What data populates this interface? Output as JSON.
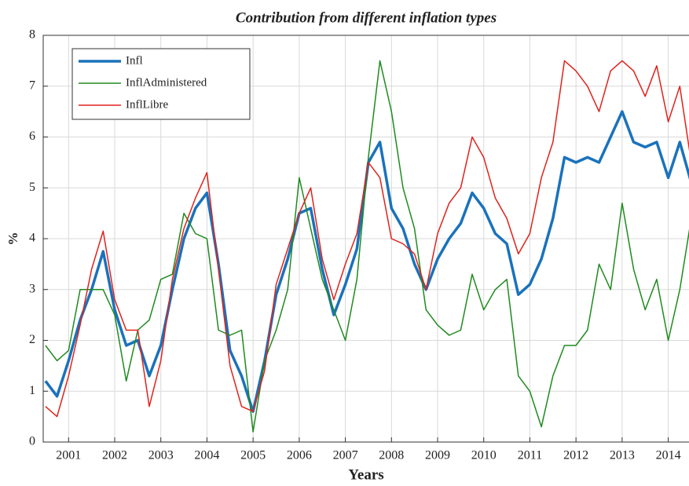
{
  "chart_data": {
    "type": "line",
    "title": "Contribution from different inflation types",
    "x_label": "Years",
    "y_label": "%",
    "x": [
      2000.5,
      2000.75,
      2001,
      2001.25,
      2001.5,
      2001.75,
      2002,
      2002.25,
      2002.5,
      2002.75,
      2003,
      2003.25,
      2003.5,
      2003.75,
      2004,
      2004.25,
      2004.5,
      2004.75,
      2005,
      2005.25,
      2005.5,
      2005.75,
      2006,
      2006.25,
      2006.5,
      2006.75,
      2007,
      2007.25,
      2007.5,
      2007.75,
      2008,
      2008.25,
      2008.5,
      2008.75,
      2009,
      2009.25,
      2009.5,
      2009.75,
      2010,
      2010.25,
      2010.5,
      2010.75,
      2011,
      2011.25,
      2011.5,
      2011.75,
      2012,
      2012.25,
      2012.5,
      2012.75,
      2013,
      2013.25,
      2013.5,
      2013.75,
      2014,
      2014.25,
      2014.5
    ],
    "series": [
      {
        "name": "Infl",
        "color": "#1a72bb",
        "width": 3.5,
        "values": [
          1.2,
          0.9,
          1.6,
          2.4,
          3.0,
          3.75,
          2.6,
          1.9,
          2.0,
          1.3,
          1.9,
          3.0,
          4.0,
          4.6,
          4.9,
          3.5,
          1.8,
          1.3,
          0.6,
          1.6,
          2.9,
          3.6,
          4.5,
          4.6,
          3.4,
          2.5,
          3.1,
          3.8,
          5.5,
          5.9,
          4.6,
          4.2,
          3.5,
          3.0,
          3.6,
          4.0,
          4.3,
          4.9,
          4.6,
          4.1,
          3.9,
          2.9,
          3.1,
          3.6,
          4.4,
          5.6,
          5.5,
          5.6,
          5.5,
          6.0,
          6.5,
          5.9,
          5.8,
          5.9,
          5.2,
          5.9,
          5.1
        ]
      },
      {
        "name": "InflAdministered",
        "color": "#1f8a1f",
        "width": 1.5,
        "values": [
          1.9,
          1.6,
          1.8,
          3.0,
          3.0,
          3.0,
          2.5,
          1.2,
          2.2,
          2.4,
          3.2,
          3.3,
          4.5,
          4.1,
          4.0,
          2.2,
          2.1,
          2.2,
          0.2,
          1.6,
          2.2,
          3.0,
          5.2,
          4.2,
          3.2,
          2.6,
          2.0,
          3.2,
          5.6,
          7.5,
          6.5,
          5.0,
          4.2,
          2.6,
          2.3,
          2.1,
          2.2,
          3.3,
          2.6,
          3.0,
          3.2,
          1.3,
          1.0,
          0.3,
          1.3,
          1.9,
          1.9,
          2.2,
          3.5,
          3.0,
          4.7,
          3.4,
          2.6,
          3.2,
          2.0,
          3.0,
          4.4
        ]
      },
      {
        "name": "InflLibre",
        "color": "#e0221c",
        "width": 1.5,
        "values": [
          0.7,
          0.5,
          1.3,
          2.3,
          3.4,
          4.15,
          2.8,
          2.2,
          2.2,
          0.7,
          1.6,
          3.2,
          4.2,
          4.8,
          5.3,
          3.4,
          1.5,
          0.7,
          0.6,
          1.4,
          3.1,
          3.8,
          4.5,
          5.0,
          3.6,
          2.8,
          3.5,
          4.1,
          5.5,
          5.2,
          4.0,
          3.9,
          3.7,
          3.0,
          4.1,
          4.7,
          5.0,
          6.0,
          5.6,
          4.8,
          4.4,
          3.7,
          4.1,
          5.2,
          5.9,
          7.5,
          7.3,
          7.0,
          6.5,
          7.3,
          7.5,
          7.3,
          6.8,
          7.4,
          6.3,
          7.0,
          5.5
        ]
      }
    ],
    "xlim": [
      2000.45,
      2014.45
    ],
    "xticks": [
      2001,
      2002,
      2003,
      2004,
      2005,
      2006,
      2007,
      2008,
      2009,
      2010,
      2011,
      2012,
      2013,
      2014
    ],
    "ylim": [
      0,
      8
    ],
    "yticks": [
      0,
      1,
      2,
      3,
      4,
      5,
      6,
      7,
      8
    ],
    "grid": true,
    "legend": "upper left"
  }
}
